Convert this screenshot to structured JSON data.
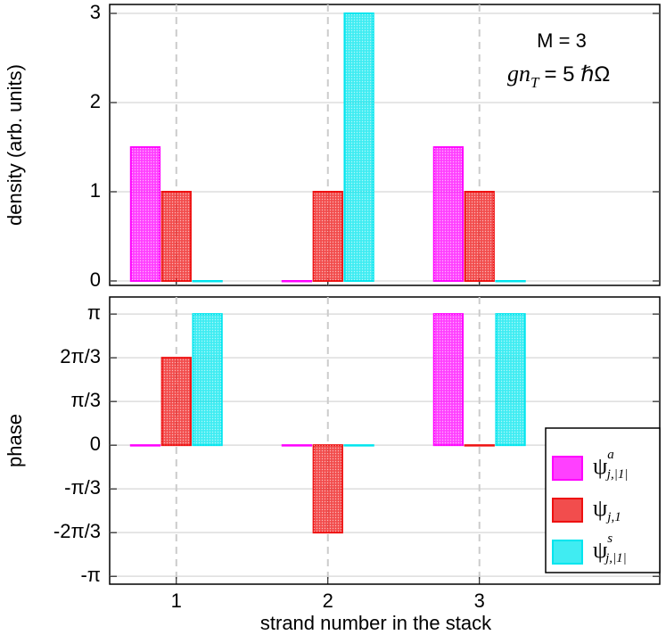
{
  "chart_data": [
    {
      "type": "bar",
      "ylabel": "density (arb. units)",
      "x": [
        1,
        2,
        3
      ],
      "xlim": [
        0.56,
        4.19
      ],
      "xticks": [
        1,
        2,
        3
      ],
      "ylim": [
        -0.05,
        3.1
      ],
      "yticks": [
        0,
        1,
        2,
        3
      ],
      "grid": true,
      "annotations": [
        "M = 3",
        "gn",
        "T",
        "= 5 ℏΩ"
      ],
      "series": [
        {
          "name": "ψ",
          "superscript": "a",
          "subscript": "j,|1|",
          "color": "#ff00ff",
          "values": [
            1.5,
            0,
            1.5
          ]
        },
        {
          "name": "ψ",
          "superscript": "",
          "subscript": "j,1",
          "color": "#ee1111",
          "values": [
            1,
            1,
            1
          ]
        },
        {
          "name": "ψ",
          "superscript": "s",
          "subscript": "j,|1|",
          "color": "#00e5ee",
          "values": [
            0,
            3,
            0
          ]
        }
      ]
    },
    {
      "type": "bar",
      "ylabel": "phase",
      "xlabel": "strand number in the stack",
      "x": [
        1,
        2,
        3
      ],
      "xlim": [
        0.56,
        4.19
      ],
      "xticks": [
        1,
        2,
        3
      ],
      "ylim": [
        -3.33,
        3.55
      ],
      "yticks": [
        {
          "value": 3.1416,
          "label": "π"
        },
        {
          "value": 2.0944,
          "label": "2π/3"
        },
        {
          "value": 1.0472,
          "label": "π/3"
        },
        0,
        {
          "value": -1.0472,
          "label": "-π/3"
        },
        {
          "value": -2.0944,
          "label": "-2π/3"
        },
        {
          "value": -3.1416,
          "label": "-π"
        }
      ],
      "grid": true,
      "legend": "lower right",
      "series": [
        {
          "color": "#ff00ff",
          "values": [
            0,
            0,
            3.1416
          ]
        },
        {
          "color": "#ee1111",
          "values": [
            2.0944,
            -2.0944,
            0
          ]
        },
        {
          "color": "#00e5ee",
          "values": [
            3.1416,
            0,
            3.1416
          ]
        }
      ]
    }
  ]
}
